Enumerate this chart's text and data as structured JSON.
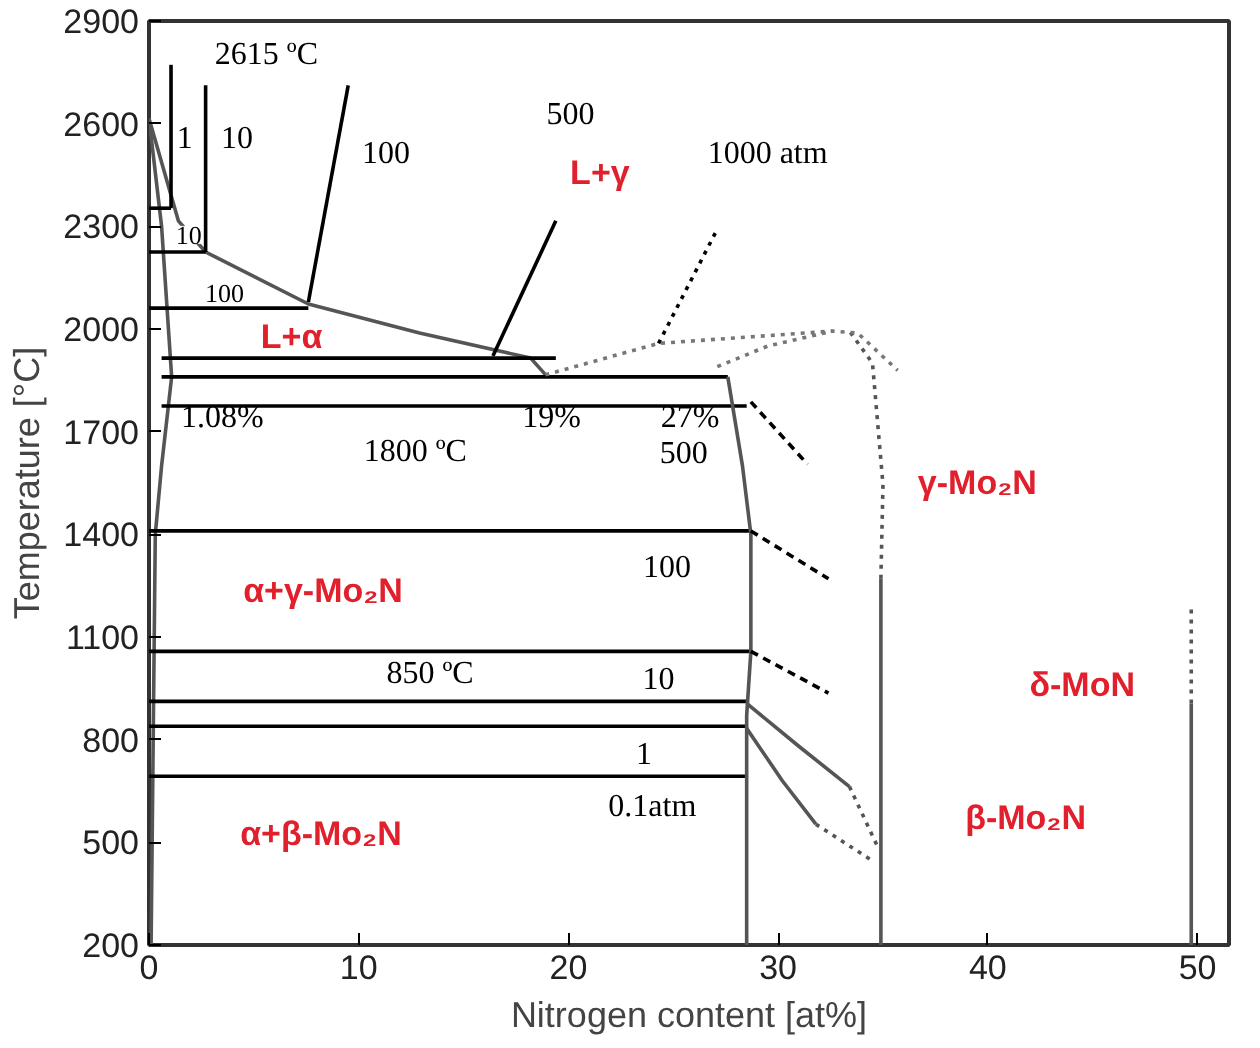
{
  "chart_data": {
    "type": "line",
    "xlabel": "Nitrogen content [at%]",
    "ylabel": "Temperature [°C]",
    "xlim": [
      0,
      51.5
    ],
    "ylim": [
      200,
      2900
    ],
    "xticks": [
      0,
      10,
      20,
      30,
      40,
      50
    ],
    "yticks": [
      200,
      500,
      800,
      1100,
      1400,
      1700,
      2000,
      2300,
      2600,
      2900
    ],
    "grid": false,
    "marker": "none",
    "line_style": "solid",
    "series": [
      {
        "color": "#555555",
        "x": [
          0,
          1.4,
          2.7,
          7.6,
          12.9,
          18.2,
          19
        ],
        "values": [
          2615,
          2316,
          2225,
          2073,
          1988,
          1915,
          1860
        ]
      },
      {
        "color": "#555555",
        "x": [
          0,
          0.6,
          1.08,
          0.6,
          0.3,
          0.1
        ],
        "values": [
          2615,
          2300,
          1860,
          1600,
          1400,
          200
        ]
      },
      {
        "color": "#000000",
        "x": [
          0.6,
          19.4
        ],
        "values": [
          1915,
          1915
        ]
      },
      {
        "color": "#000000",
        "x": [
          0.6,
          27.6
        ],
        "values": [
          1860,
          1860
        ]
      },
      {
        "color": "#000000",
        "x": [
          0.6,
          28.5
        ],
        "values": [
          1775,
          1775
        ]
      },
      {
        "color": "#000000",
        "x": [
          0,
          1.05
        ],
        "values": [
          2353,
          2353
        ]
      },
      {
        "color": "#000000",
        "x": [
          0,
          2.7
        ],
        "values": [
          2225,
          2225
        ]
      },
      {
        "color": "#000000",
        "x": [
          0,
          7.6
        ],
        "values": [
          2061,
          2061
        ]
      },
      {
        "color": "#000000",
        "x": [
          0,
          28.7
        ],
        "values": [
          1410,
          1410
        ]
      },
      {
        "color": "#000000",
        "x": [
          0,
          28.7
        ],
        "values": [
          1058,
          1058
        ]
      },
      {
        "color": "#000000",
        "x": [
          0,
          28.6
        ],
        "values": [
          912,
          912
        ]
      },
      {
        "color": "#000000",
        "x": [
          0,
          28.5
        ],
        "values": [
          839,
          839
        ]
      },
      {
        "color": "#000000",
        "x": [
          0,
          28.5
        ],
        "values": [
          693,
          693
        ]
      },
      {
        "color": "#000000",
        "x": [
          1.05,
          1.05
        ],
        "values": [
          2772,
          2353
        ]
      },
      {
        "color": "#000000",
        "x": [
          2.7,
          2.7
        ],
        "values": [
          2712,
          2225
        ]
      },
      {
        "color": "#000000",
        "x": [
          7.6,
          9.5
        ],
        "values": [
          2079,
          2712
        ]
      },
      {
        "color": "#000000",
        "x": [
          16.4,
          19.4
        ],
        "values": [
          1921,
          2316
        ]
      },
      {
        "color": "#000000",
        "line_style": "dotted",
        "x": [
          24.3,
          27.1
        ],
        "values": [
          1958,
          2292
        ]
      },
      {
        "color": "#555555",
        "x": [
          27.6,
          28.3,
          28.7,
          28.7,
          28.5,
          28.5
        ],
        "values": [
          1860,
          1600,
          1400,
          1058,
          870,
          200
        ]
      },
      {
        "color": "#000000",
        "line_style": "dashed",
        "x": [
          28.7,
          31.4
        ],
        "values": [
          1787,
          1605
        ]
      },
      {
        "color": "#000000",
        "line_style": "dashed",
        "x": [
          28.7,
          32.4
        ],
        "values": [
          1410,
          1270
        ]
      },
      {
        "color": "#000000",
        "line_style": "dashed",
        "x": [
          28.7,
          32.4
        ],
        "values": [
          1058,
          936
        ]
      },
      {
        "color": "#555555",
        "x": [
          28.5,
          31.0,
          33.4
        ],
        "values": [
          906,
          780,
          663
        ]
      },
      {
        "color": "#555555",
        "line_style": "dotted",
        "x": [
          33.4,
          34.8
        ],
        "values": [
          663,
          480
        ]
      },
      {
        "color": "#555555",
        "x": [
          28.5,
          30.2,
          31.8
        ],
        "values": [
          833,
          680,
          553
        ]
      },
      {
        "color": "#555555",
        "line_style": "dotted",
        "x": [
          31.8,
          34.4
        ],
        "values": [
          553,
          450
        ]
      },
      {
        "color": "#555555",
        "x": [
          34.9,
          34.9
        ],
        "values": [
          200,
          1270
        ]
      },
      {
        "color": "#555555",
        "line_style": "dotted",
        "x": [
          34.9,
          35.0,
          34.5,
          33.4
        ],
        "values": [
          1270,
          1545,
          1900,
          1994
        ]
      },
      {
        "color": "#777777",
        "line_style": "dotted",
        "x": [
          18.9,
          24.3,
          32.6,
          33.8,
          35.7
        ],
        "values": [
          1866,
          1958,
          1994,
          1988,
          1879
        ]
      },
      {
        "color": "#777777",
        "line_style": "dotted",
        "x": [
          27.1,
          29.5,
          32.6
        ],
        "values": [
          1890,
          1950,
          1994
        ]
      },
      {
        "color": "#555555",
        "x": [
          49.7,
          49.7
        ],
        "values": [
          200,
          906
        ]
      },
      {
        "color": "#555555",
        "line_style": "dotted",
        "x": [
          49.7,
          49.7
        ],
        "values": [
          906,
          1192
        ]
      }
    ],
    "annotations": [
      "2615 ºC",
      "1",
      "10",
      "10",
      "100",
      "100",
      "500",
      "1000 atm",
      "L+γ",
      "L+α",
      "1.08%",
      "19%",
      "27%",
      "1800 ºC",
      "500",
      "γ-Mo₂N",
      "100",
      "α+γ-Mo₂N",
      "850 ºC",
      "10",
      "1",
      "0.1atm",
      "α+β-Mo₂N",
      "β-Mo₂N",
      "δ-MoN"
    ]
  }
}
